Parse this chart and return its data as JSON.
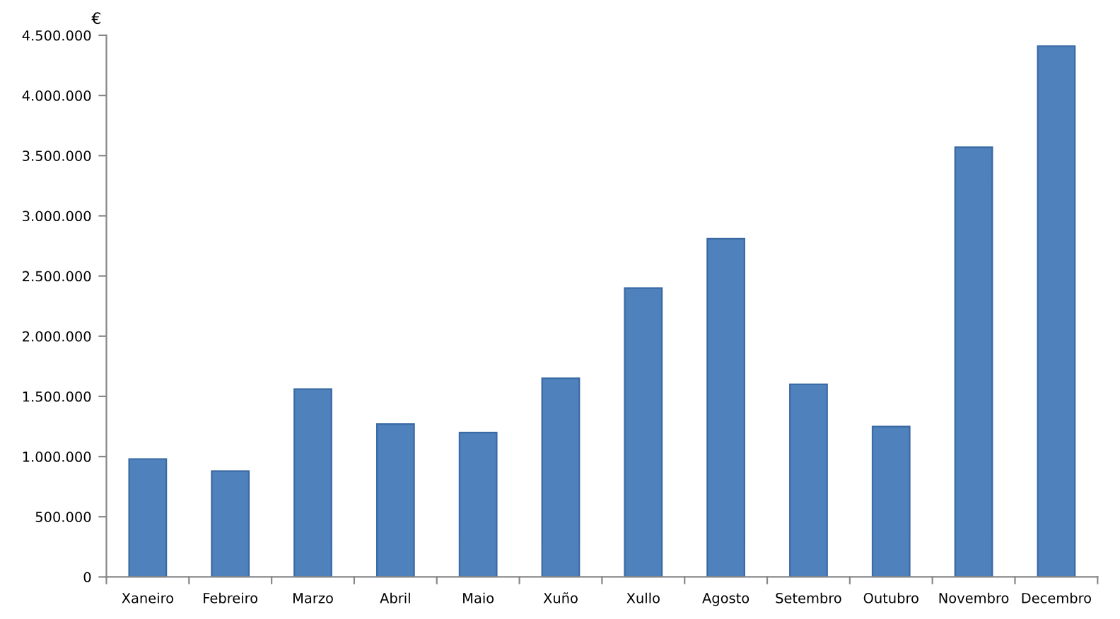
{
  "chart_data": {
    "type": "bar",
    "ylabel": "€",
    "categories": [
      "Xaneiro",
      "Febreiro",
      "Marzo",
      "Abril",
      "Maio",
      "Xuño",
      "Xullo",
      "Agosto",
      "Setembro",
      "Outubro",
      "Novembro",
      "Decembro"
    ],
    "values": [
      980000,
      880000,
      1560000,
      1270000,
      1200000,
      1650000,
      2400000,
      2810000,
      1600000,
      1250000,
      3570000,
      4410000
    ],
    "color": "#4f81bd",
    "ylim": [
      0,
      4500000
    ],
    "yticks": [
      0,
      {
        "value": 500000,
        "label": "500.000"
      },
      {
        "value": 1000000,
        "label": "1.000.000"
      },
      {
        "value": 1500000,
        "label": "1.500.000"
      },
      {
        "value": 2000000,
        "label": "2.000.000"
      },
      {
        "value": 2500000,
        "label": "2.500.000"
      },
      {
        "value": 3000000,
        "label": "3.000.000"
      },
      {
        "value": 3500000,
        "label": "3.500.000"
      },
      {
        "value": 4000000,
        "label": "4.000.000"
      },
      {
        "value": 4500000,
        "label": "4.500.000"
      }
    ],
    "grid": false,
    "legend": false
  }
}
